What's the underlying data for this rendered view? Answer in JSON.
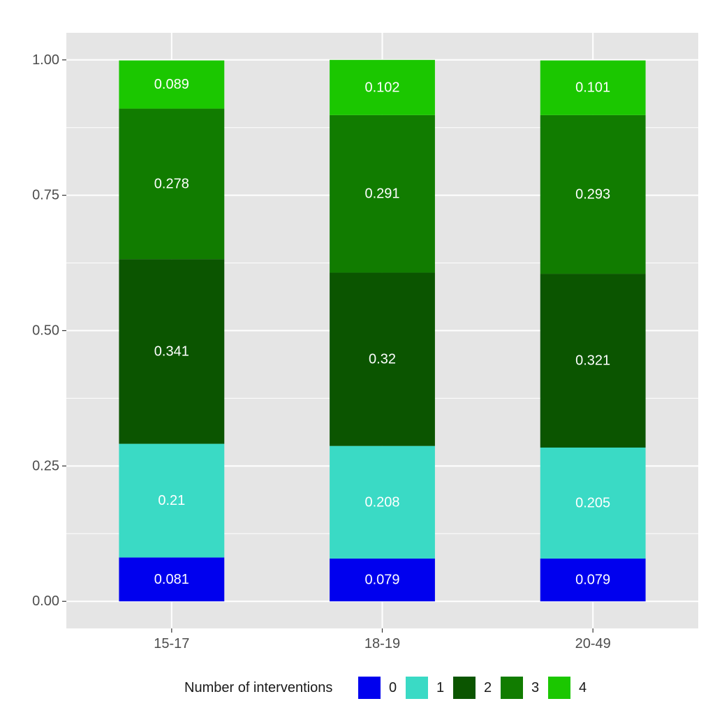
{
  "chart_data": {
    "type": "bar",
    "stacked": true,
    "categories": [
      "15-17",
      "18-19",
      "20-49"
    ],
    "series": [
      {
        "name": "0",
        "color": "#0000EE",
        "values": [
          0.081,
          0.079,
          0.079
        ],
        "labels": [
          "0.081",
          "0.079",
          "0.079"
        ]
      },
      {
        "name": "1",
        "color": "#3ADAC5",
        "values": [
          0.21,
          0.208,
          0.205
        ],
        "labels": [
          "0.21",
          "0.208",
          "0.205"
        ]
      },
      {
        "name": "2",
        "color": "#0B5500",
        "values": [
          0.341,
          0.32,
          0.321
        ],
        "labels": [
          "0.341",
          "0.32",
          "0.321"
        ]
      },
      {
        "name": "3",
        "color": "#117C00",
        "values": [
          0.278,
          0.291,
          0.293
        ],
        "labels": [
          "0.278",
          "0.291",
          "0.293"
        ]
      },
      {
        "name": "4",
        "color": "#1BC700",
        "values": [
          0.089,
          0.102,
          0.101
        ],
        "labels": [
          "0.089",
          "0.102",
          "0.101"
        ]
      }
    ],
    "title": "",
    "xlabel": "",
    "ylabel": "",
    "ylim": [
      -0.05,
      1.05
    ],
    "yticks": [
      0,
      0.25,
      0.5,
      0.75,
      1.0
    ],
    "ytick_labels": [
      "0.00",
      "0.25",
      "0.50",
      "0.75",
      "1.00"
    ],
    "grid": true,
    "panel_color": "#E5E5E5",
    "legend": {
      "title": "Number of interventions",
      "position": "bottom"
    }
  }
}
